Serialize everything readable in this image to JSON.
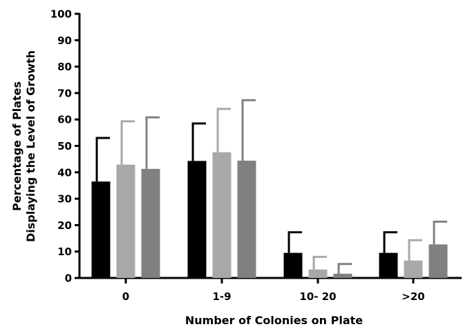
{
  "chart_data": {
    "type": "bar",
    "xlabel": "Number of Colonies on Plate",
    "ylabel_lines": [
      "Percentage of Plates",
      "Displaying the Level of Growth"
    ],
    "categories": [
      "0",
      "1-9",
      "10- 20",
      ">20"
    ],
    "ylim": [
      0,
      100
    ],
    "yticks": [
      0,
      10,
      20,
      30,
      40,
      50,
      60,
      70,
      80,
      90,
      100
    ],
    "series": [
      {
        "color": "#000000",
        "values": [
          36.5,
          44.3,
          9.5,
          9.5
        ],
        "errors": [
          16.5,
          14.2,
          7.8,
          7.8
        ]
      },
      {
        "color": "#a8a8a8",
        "values": [
          42.9,
          47.6,
          3.2,
          6.6
        ],
        "errors": [
          16.4,
          16.4,
          4.8,
          7.7
        ]
      },
      {
        "color": "#808080",
        "values": [
          41.3,
          44.4,
          1.6,
          12.7
        ],
        "errors": [
          19.5,
          22.9,
          3.7,
          8.6
        ]
      }
    ],
    "grid": false,
    "legend": "none"
  }
}
